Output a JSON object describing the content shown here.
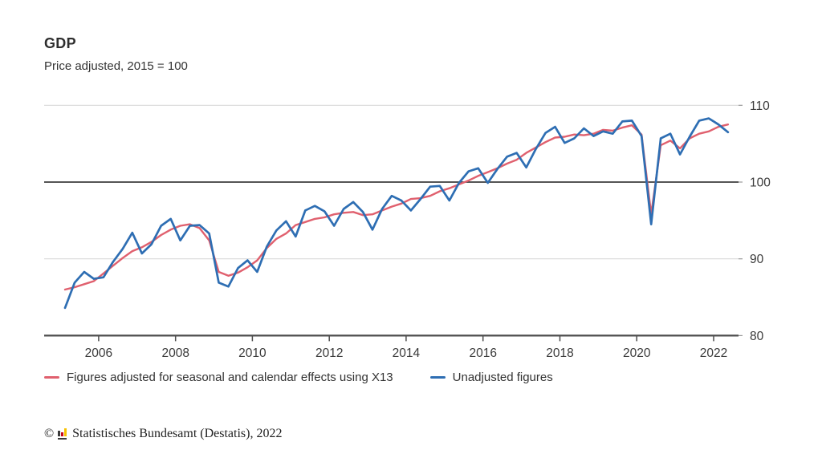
{
  "header": {
    "title": "GDP",
    "subtitle": "Price adjusted, 2015 = 100"
  },
  "chart_data": {
    "type": "line",
    "title": "GDP",
    "subtitle": "Price adjusted, 2015 = 100",
    "frequency": "quarterly",
    "x_range": {
      "start": "2005-Q1",
      "end": "2022-Q2"
    },
    "x_ticks": [
      2006,
      2008,
      2010,
      2012,
      2014,
      2016,
      2018,
      2020,
      2022
    ],
    "y_ticks": [
      80,
      90,
      100,
      110
    ],
    "ylim": [
      80,
      112
    ],
    "baseline_value": 100,
    "grid": "horizontal",
    "legend_position": "bottom",
    "colors": {
      "grid_light": "#d9d9d9",
      "baseline_100": "#3d3d3d",
      "axis": "#4d4d4d",
      "tick_text": "#3a3a3a"
    },
    "series": [
      {
        "name": "Figures adjusted for seasonal and calendar effects using X13",
        "color": "#e0606e",
        "stroke_width": 2.4,
        "values": [
          86.0,
          86.3,
          86.7,
          87.1,
          88.1,
          89.1,
          90.1,
          91.0,
          91.5,
          92.2,
          93.1,
          93.8,
          94.3,
          94.5,
          94.0,
          92.4,
          88.3,
          87.8,
          88.2,
          88.9,
          89.8,
          91.4,
          92.6,
          93.3,
          94.4,
          94.8,
          95.2,
          95.4,
          95.8,
          96.0,
          96.1,
          95.7,
          95.8,
          96.3,
          96.8,
          97.2,
          97.8,
          97.9,
          98.2,
          98.8,
          99.2,
          99.7,
          100.2,
          100.8,
          101.3,
          101.8,
          102.4,
          102.9,
          103.8,
          104.5,
          105.2,
          105.8,
          105.9,
          106.2,
          106.1,
          106.3,
          106.8,
          106.7,
          107.1,
          107.4,
          106.2,
          95.8,
          104.8,
          105.4,
          104.4,
          105.7,
          106.3,
          106.6,
          107.2,
          107.5
        ]
      },
      {
        "name": "Unadjusted figures",
        "color": "#2e6eb3",
        "stroke_width": 2.7,
        "values": [
          83.6,
          86.9,
          88.3,
          87.4,
          87.6,
          89.6,
          91.3,
          93.4,
          90.7,
          91.9,
          94.3,
          95.2,
          92.4,
          94.3,
          94.4,
          93.3,
          86.9,
          86.4,
          88.8,
          89.8,
          88.3,
          91.6,
          93.7,
          94.9,
          92.9,
          96.3,
          96.9,
          96.2,
          94.3,
          96.5,
          97.4,
          96.1,
          93.8,
          96.5,
          98.2,
          97.6,
          96.3,
          97.8,
          99.4,
          99.5,
          97.6,
          99.9,
          101.4,
          101.8,
          99.9,
          101.7,
          103.3,
          103.8,
          101.9,
          104.3,
          106.4,
          107.2,
          105.1,
          105.7,
          107.0,
          106.0,
          106.6,
          106.3,
          107.9,
          108.0,
          106.0,
          94.5,
          105.7,
          106.3,
          103.6,
          105.9,
          108.0,
          108.3,
          107.5,
          106.5
        ]
      }
    ]
  },
  "footer": {
    "copyright_symbol": "©",
    "source": "Statistisches Bundesamt (Destatis), 2022",
    "logo": {
      "name": "destatis-bar-chart-logo",
      "bar_colors": [
        "#3a3a3a",
        "#c9081c",
        "#f8c200"
      ],
      "base_color": "#3a3a3a"
    }
  }
}
